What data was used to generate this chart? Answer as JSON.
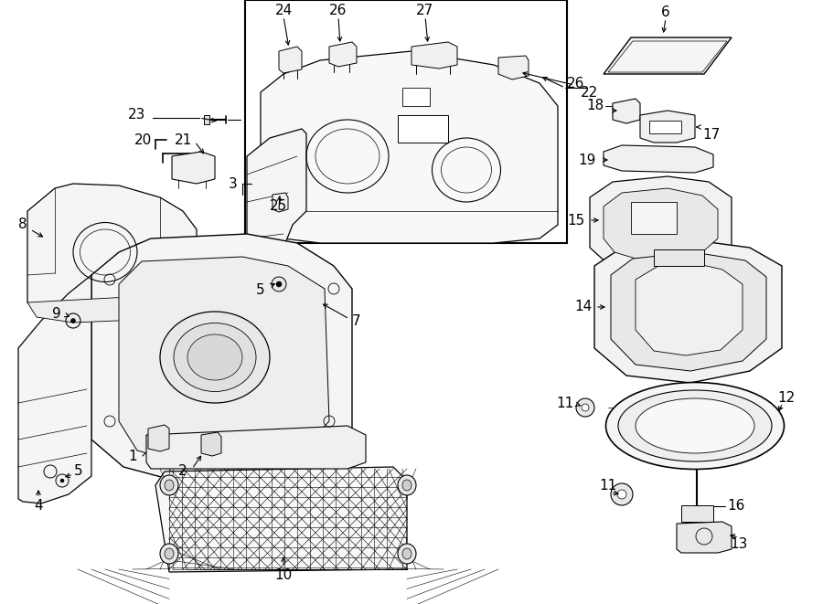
{
  "bg_color": "#ffffff",
  "line_color": "#000000",
  "figsize": [
    9.0,
    6.61
  ],
  "dpi": 100,
  "lw": 0.8,
  "fs": 11
}
